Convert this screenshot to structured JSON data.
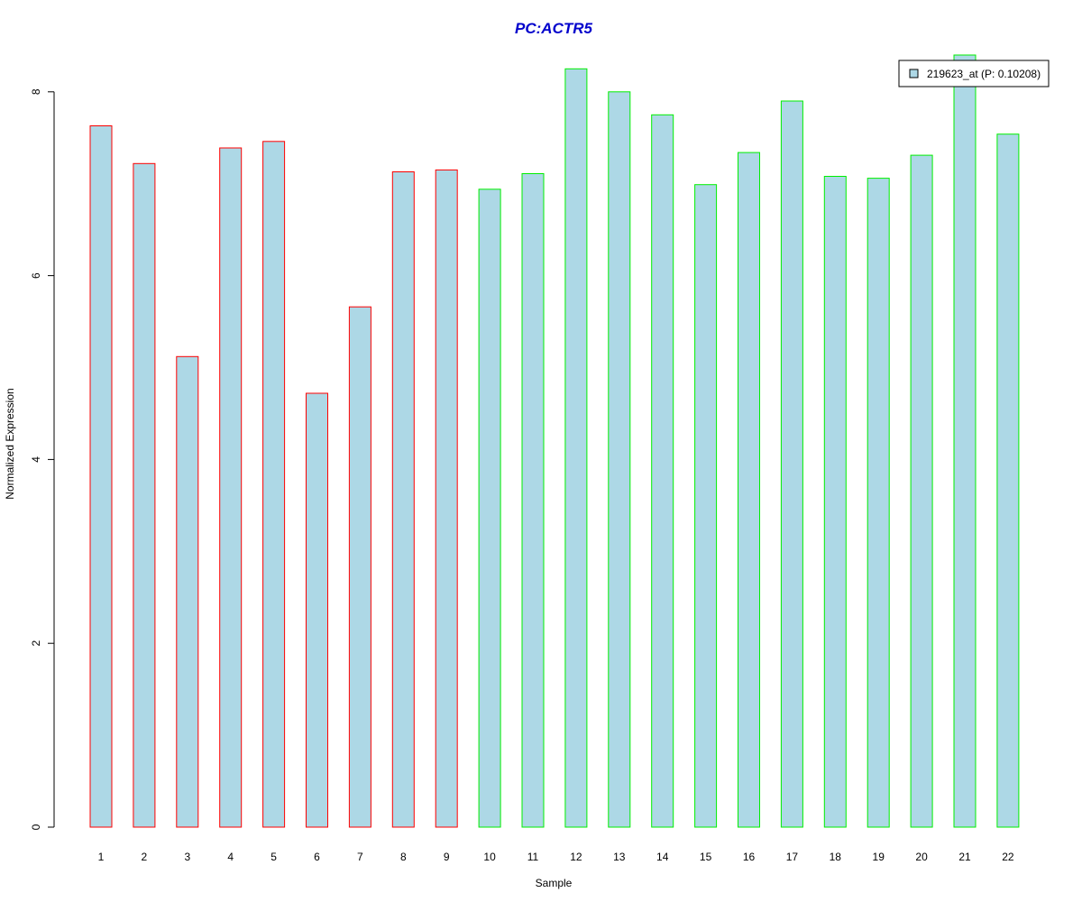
{
  "chart_data": {
    "type": "bar",
    "title": "PC:ACTR5",
    "title_color": "#0000cc",
    "xlabel": "Sample",
    "ylabel": "Normalized Expression",
    "categories": [
      "1",
      "2",
      "3",
      "4",
      "5",
      "6",
      "7",
      "8",
      "9",
      "10",
      "11",
      "12",
      "13",
      "14",
      "15",
      "16",
      "17",
      "18",
      "19",
      "20",
      "21",
      "22"
    ],
    "values": [
      7.63,
      7.22,
      5.12,
      7.39,
      7.46,
      4.72,
      5.66,
      7.13,
      7.15,
      6.94,
      7.11,
      8.25,
      8.0,
      7.75,
      6.99,
      7.34,
      7.9,
      7.08,
      7.06,
      7.31,
      8.4,
      7.54
    ],
    "groups": [
      "a",
      "a",
      "a",
      "a",
      "a",
      "a",
      "a",
      "a",
      "a",
      "b",
      "b",
      "b",
      "b",
      "b",
      "b",
      "b",
      "b",
      "b",
      "b",
      "b",
      "b",
      "b"
    ],
    "group_colors": {
      "a": "#ff0000",
      "b": "#00ee00"
    },
    "bar_fill": "#add8e6",
    "ylim": [
      0,
      8
    ],
    "yticks": [
      0,
      2,
      4,
      6,
      8
    ],
    "grid": false,
    "legend": {
      "position": "top-right",
      "entries": [
        {
          "label": "219623_at (P: 0.10208)",
          "color": "#add8e6"
        }
      ]
    }
  }
}
